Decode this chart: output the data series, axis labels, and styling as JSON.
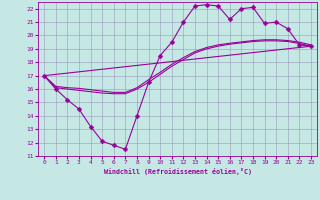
{
  "xlabel": "Windchill (Refroidissement éolien,°C)",
  "xlim": [
    -0.5,
    23.5
  ],
  "ylim": [
    11,
    22.5
  ],
  "yticks": [
    11,
    12,
    13,
    14,
    15,
    16,
    17,
    18,
    19,
    20,
    21,
    22
  ],
  "xticks": [
    0,
    1,
    2,
    3,
    4,
    5,
    6,
    7,
    8,
    9,
    10,
    11,
    12,
    13,
    14,
    15,
    16,
    17,
    18,
    19,
    20,
    21,
    22,
    23
  ],
  "bg_color": "#c5e8e5",
  "line_color": "#990099",
  "grid_color": "#9999bb",
  "lines": [
    {
      "x": [
        0,
        1,
        2,
        3,
        4,
        5,
        6,
        7,
        8,
        9,
        10,
        11,
        12,
        13,
        14,
        15,
        16,
        17,
        18,
        19,
        20,
        21,
        22,
        23
      ],
      "y": [
        17,
        16.0,
        15.2,
        14.5,
        13.2,
        12.1,
        11.8,
        11.5,
        14.0,
        16.5,
        18.5,
        19.5,
        21.0,
        22.2,
        22.3,
        22.2,
        21.2,
        22.0,
        22.1,
        20.9,
        21.0,
        20.5,
        19.3,
        19.2
      ],
      "marker": "D",
      "markersize": 2.5,
      "lw": 0.8
    },
    {
      "x": [
        0,
        23
      ],
      "y": [
        17,
        19.2
      ],
      "marker": null,
      "markersize": 0,
      "lw": 0.8
    },
    {
      "x": [
        0,
        1,
        2,
        3,
        4,
        5,
        6,
        7,
        8,
        9,
        10,
        11,
        12,
        13,
        14,
        15,
        16,
        17,
        18,
        19,
        20,
        21,
        22,
        23
      ],
      "y": [
        17,
        16.1,
        16.0,
        15.9,
        15.8,
        15.7,
        15.65,
        15.65,
        16.0,
        16.5,
        17.1,
        17.7,
        18.2,
        18.7,
        19.0,
        19.2,
        19.35,
        19.45,
        19.55,
        19.6,
        19.6,
        19.55,
        19.4,
        19.2
      ],
      "marker": null,
      "markersize": 0,
      "lw": 0.8
    },
    {
      "x": [
        0,
        1,
        2,
        3,
        4,
        5,
        6,
        7,
        8,
        9,
        10,
        11,
        12,
        13,
        14,
        15,
        16,
        17,
        18,
        19,
        20,
        21,
        22,
        23
      ],
      "y": [
        17,
        16.2,
        16.1,
        16.05,
        15.95,
        15.85,
        15.75,
        15.75,
        16.1,
        16.7,
        17.25,
        17.85,
        18.35,
        18.8,
        19.1,
        19.3,
        19.42,
        19.52,
        19.62,
        19.68,
        19.68,
        19.62,
        19.5,
        19.3
      ],
      "marker": null,
      "markersize": 0,
      "lw": 0.8
    }
  ]
}
